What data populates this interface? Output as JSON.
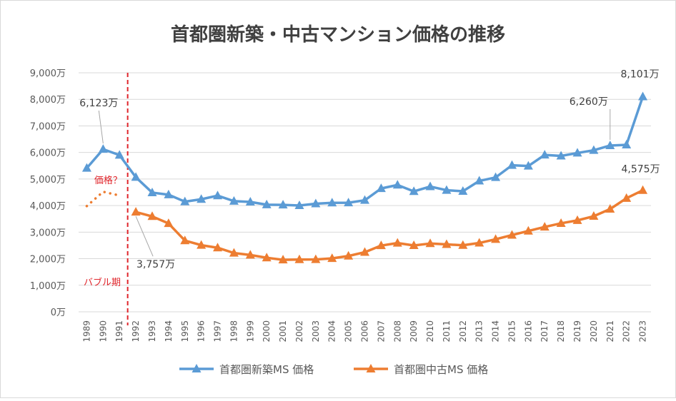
{
  "chart_data": {
    "type": "line",
    "title": "首都圏新築・中古マンション価格の推移",
    "xlabel": "",
    "ylabel": "",
    "ylim": [
      0,
      9000
    ],
    "y_ticks": [
      "0万",
      "1,000万",
      "2,000万",
      "3,000万",
      "4,000万",
      "5,000万",
      "6,000万",
      "7,000万",
      "8,000万",
      "9,000万"
    ],
    "categories": [
      "1989",
      "1990",
      "1991",
      "1992",
      "1993",
      "1994",
      "1995",
      "1996",
      "1997",
      "1998",
      "1999",
      "2000",
      "2001",
      "2002",
      "2003",
      "2004",
      "2005",
      "2006",
      "2007",
      "2008",
      "2009",
      "2010",
      "2011",
      "2012",
      "2013",
      "2014",
      "2015",
      "2016",
      "2017",
      "2018",
      "2019",
      "2020",
      "2021",
      "2022",
      "2023"
    ],
    "grid": "horizontal",
    "legend": "bottom-center",
    "series": [
      {
        "name": "首都圏新築MS 価格",
        "color": "#5b9bd5",
        "values": [
          5411,
          6123,
          5900,
          5066,
          4488,
          4409,
          4148,
          4238,
          4374,
          4168,
          4138,
          4034,
          4026,
          4003,
          4069,
          4104,
          4108,
          4200,
          4644,
          4775,
          4535,
          4716,
          4578,
          4540,
          4929,
          5060,
          5518,
          5490,
          5908,
          5871,
          5980,
          6083,
          6260,
          6288,
          8101
        ]
      },
      {
        "name": "首都圏中古MS 価格",
        "color": "#ed7d31",
        "values": [
          null,
          null,
          null,
          3757,
          3592,
          3327,
          2681,
          2509,
          2412,
          2213,
          2140,
          2036,
          1958,
          1967,
          1970,
          2011,
          2102,
          2243,
          2494,
          2589,
          2499,
          2571,
          2540,
          2506,
          2592,
          2731,
          2889,
          3043,
          3195,
          3333,
          3442,
          3599,
          3869,
          4276,
          4575
        ]
      }
    ],
    "bubble_estimate": {
      "values": [
        3980,
        4520,
        4380
      ],
      "label": "価格？",
      "color": "#ed7d31"
    },
    "annotations": [
      {
        "text": "6,123万",
        "series": 0,
        "index": 1
      },
      {
        "text": "3,757万",
        "series": 1,
        "index": 3
      },
      {
        "text": "6,260万",
        "series": 0,
        "index": 32
      },
      {
        "text": "8,101万",
        "series": 0,
        "index": 34
      },
      {
        "text": "4,575万",
        "series": 1,
        "index": 34
      }
    ],
    "bubble_label": "バブル期",
    "bubble_line_color": "#e0252b"
  }
}
